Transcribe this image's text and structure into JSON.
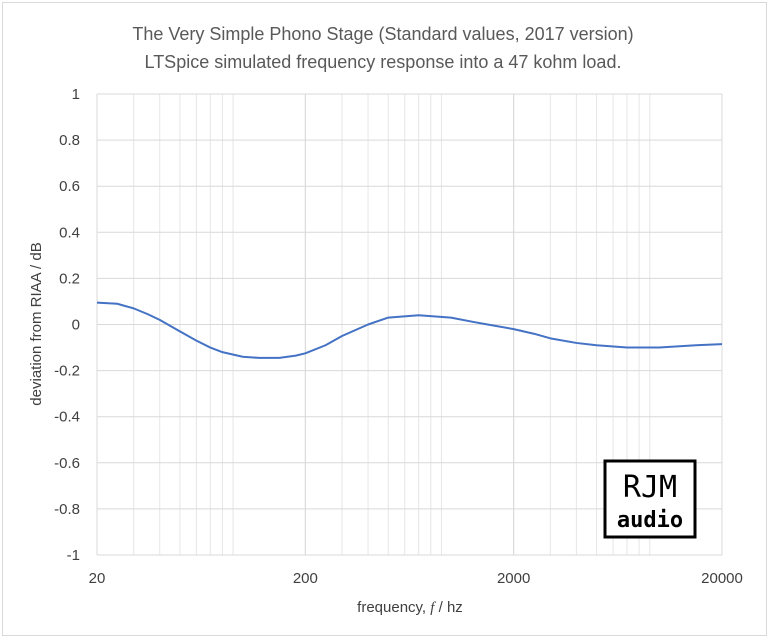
{
  "chart_data": {
    "type": "line",
    "title": "The Very Simple Phono Stage (Standard values, 2017 version)",
    "subtitle": "LTSpice simulated frequency response into a 47 kohm load.",
    "xlabel_prefix": "frequency, ",
    "xlabel_symbol": "f",
    "xlabel_suffix": " / hz",
    "ylabel": "deviation from RIAA / dB",
    "x_scale": "log",
    "xlim": [
      20,
      20000
    ],
    "ylim": [
      -1,
      1
    ],
    "x_ticks": [
      20,
      200,
      2000,
      20000
    ],
    "x_tick_labels": [
      "20",
      "200",
      "2000",
      "20000"
    ],
    "y_ticks": [
      1,
      0.8,
      0.6,
      0.4,
      0.2,
      0,
      -0.2,
      -0.4,
      -0.6,
      -0.8,
      -1
    ],
    "y_tick_labels": [
      "1",
      "0.8",
      "0.6",
      "0.4",
      "0.2",
      "0",
      "-0.2",
      "-0.4",
      "-0.6",
      "-0.8",
      "-1"
    ],
    "grid": true,
    "series": [
      {
        "color": "#4472c4",
        "x": [
          20,
          25,
          30,
          35,
          40,
          50,
          60,
          70,
          80,
          100,
          120,
          150,
          180,
          200,
          250,
          300,
          400,
          500,
          700,
          1000,
          1300,
          1500,
          2000,
          2500,
          3000,
          4000,
          5000,
          7000,
          10000,
          15000,
          20000
        ],
        "y": [
          0.095,
          0.09,
          0.07,
          0.045,
          0.02,
          -0.03,
          -0.07,
          -0.1,
          -0.12,
          -0.14,
          -0.145,
          -0.145,
          -0.135,
          -0.125,
          -0.09,
          -0.05,
          0.0,
          0.03,
          0.04,
          0.03,
          0.01,
          0.0,
          -0.02,
          -0.04,
          -0.06,
          -0.08,
          -0.09,
          -0.1,
          -0.1,
          -0.09,
          -0.085
        ]
      }
    ]
  },
  "logo": {
    "line1": "RJM",
    "line2": "audio"
  }
}
